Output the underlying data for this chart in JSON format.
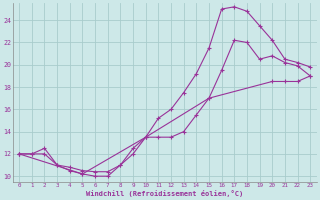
{
  "xlabel": "Windchill (Refroidissement éolien,°C)",
  "bg_color": "#cde8e8",
  "line_color": "#993399",
  "grid_color": "#a8cccc",
  "xlim": [
    -0.5,
    23.5
  ],
  "ylim": [
    9.5,
    25.5
  ],
  "yticks": [
    10,
    12,
    14,
    16,
    18,
    20,
    22,
    24
  ],
  "xticks": [
    0,
    1,
    2,
    3,
    4,
    5,
    6,
    7,
    8,
    9,
    10,
    11,
    12,
    13,
    14,
    15,
    16,
    17,
    18,
    19,
    20,
    21,
    22,
    23
  ],
  "line1_x": [
    0,
    1,
    2,
    3,
    4,
    5,
    6,
    7,
    8,
    9,
    10,
    11,
    12,
    13,
    14,
    15,
    16,
    17,
    18,
    19,
    20,
    21,
    22,
    23
  ],
  "line1_y": [
    12.0,
    12.0,
    12.5,
    11.0,
    10.8,
    10.5,
    10.4,
    10.4,
    11.0,
    12.0,
    13.5,
    15.2,
    16.0,
    17.5,
    19.2,
    21.5,
    25.0,
    25.2,
    24.8,
    23.5,
    22.2,
    20.5,
    20.2,
    19.8
  ],
  "line2_x": [
    0,
    1,
    2,
    3,
    4,
    5,
    6,
    7,
    8,
    9,
    10,
    11,
    12,
    13,
    14,
    15,
    16,
    17,
    18,
    19,
    20,
    21,
    22,
    23
  ],
  "line2_y": [
    12.0,
    12.0,
    12.0,
    11.0,
    10.5,
    10.2,
    10.0,
    10.0,
    11.0,
    12.5,
    13.5,
    13.5,
    13.5,
    14.0,
    15.5,
    17.0,
    19.5,
    22.2,
    22.0,
    20.5,
    20.8,
    20.2,
    19.9,
    19.0
  ],
  "line3_x": [
    0,
    5,
    10,
    15,
    20,
    21,
    22,
    23
  ],
  "line3_y": [
    12.0,
    10.2,
    13.5,
    17.0,
    18.5,
    18.5,
    18.5,
    19.0
  ]
}
